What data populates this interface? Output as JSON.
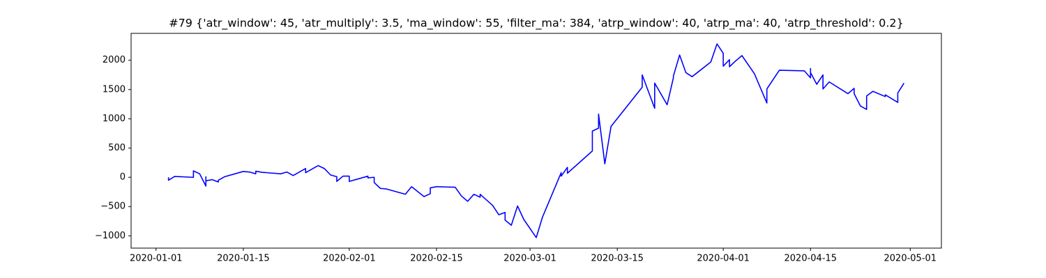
{
  "chart_data": {
    "type": "line",
    "title": "#79 {'atr_window': 45, 'atr_multiply': 3.5, 'ma_window': 55, 'filter_ma': 384, 'atrp_window': 40, 'atrp_ma': 40, 'atrp_threshold': 0.2}",
    "x": [
      "2020-01-03",
      "2020-01-03",
      "2020-01-04",
      "2020-01-07",
      "2020-01-07",
      "2020-01-08",
      "2020-01-09",
      "2020-01-09",
      "2020-01-09",
      "2020-01-10",
      "2020-01-11",
      "2020-01-11",
      "2020-01-12",
      "2020-01-15",
      "2020-01-16",
      "2020-01-17",
      "2020-01-17",
      "2020-01-18",
      "2020-01-21",
      "2020-01-22",
      "2020-01-23",
      "2020-01-25",
      "2020-01-25",
      "2020-01-27",
      "2020-01-28",
      "2020-01-29",
      "2020-01-30",
      "2020-01-30",
      "2020-01-31",
      "2020-02-01",
      "2020-02-01",
      "2020-02-04",
      "2020-02-04",
      "2020-02-05",
      "2020-02-05",
      "2020-02-06",
      "2020-02-07",
      "2020-02-10",
      "2020-02-11",
      "2020-02-13",
      "2020-02-14",
      "2020-02-14",
      "2020-02-15",
      "2020-02-18",
      "2020-02-19",
      "2020-02-20",
      "2020-02-21",
      "2020-02-22",
      "2020-02-22",
      "2020-02-24",
      "2020-02-25",
      "2020-02-26",
      "2020-02-26",
      "2020-02-27",
      "2020-02-28",
      "2020-02-29",
      "2020-03-02",
      "2020-03-03",
      "2020-03-06",
      "2020-03-06",
      "2020-03-07",
      "2020-03-07",
      "2020-03-11",
      "2020-03-11",
      "2020-03-12",
      "2020-03-12",
      "2020-03-13",
      "2020-03-14",
      "2020-03-19",
      "2020-03-19",
      "2020-03-21",
      "2020-03-21",
      "2020-03-23",
      "2020-03-24",
      "2020-03-24",
      "2020-03-25",
      "2020-03-26",
      "2020-03-27",
      "2020-03-30",
      "2020-03-31",
      "2020-04-01",
      "2020-04-01",
      "2020-04-02",
      "2020-04-02",
      "2020-04-03",
      "2020-04-04",
      "2020-04-06",
      "2020-04-08",
      "2020-04-08",
      "2020-04-10",
      "2020-04-14",
      "2020-04-15",
      "2020-04-15",
      "2020-04-15",
      "2020-04-16",
      "2020-04-17",
      "2020-04-17",
      "2020-04-18",
      "2020-04-21",
      "2020-04-22",
      "2020-04-22",
      "2020-04-23",
      "2020-04-24",
      "2020-04-24",
      "2020-04-25",
      "2020-04-27",
      "2020-04-27",
      "2020-04-29",
      "2020-04-29",
      "2020-04-30"
    ],
    "series": [
      {
        "color": "#0000ff",
        "values": [
          0,
          -50,
          15,
          0,
          110,
          60,
          -150,
          10,
          -60,
          -40,
          -80,
          -50,
          10,
          100,
          90,
          60,
          105,
          85,
          60,
          90,
          30,
          150,
          80,
          200,
          150,
          40,
          10,
          -70,
          20,
          20,
          -70,
          20,
          -10,
          0,
          -90,
          -190,
          -200,
          -290,
          -160,
          -330,
          -280,
          -180,
          -160,
          -170,
          -320,
          -410,
          -290,
          -340,
          -290,
          -480,
          -640,
          -600,
          -730,
          -820,
          -490,
          -720,
          -1030,
          -680,
          80,
          20,
          170,
          70,
          450,
          790,
          840,
          1080,
          230,
          870,
          1540,
          1750,
          1180,
          1610,
          1240,
          1700,
          1730,
          2090,
          1790,
          1720,
          1970,
          2280,
          2120,
          1900,
          2010,
          1890,
          1990,
          2080,
          1770,
          1270,
          1510,
          1830,
          1820,
          1700,
          1860,
          1790,
          1590,
          1750,
          1510,
          1630,
          1430,
          1520,
          1430,
          1220,
          1160,
          1390,
          1470,
          1380,
          1410,
          1280,
          1440,
          1610
        ]
      }
    ],
    "xlim": [
      "2019-12-28",
      "2020-05-06"
    ],
    "xticks": [
      "2020-01-01",
      "2020-01-15",
      "2020-02-01",
      "2020-02-15",
      "2020-03-01",
      "2020-03-15",
      "2020-04-01",
      "2020-04-15",
      "2020-05-01"
    ],
    "ylim": [
      -1210,
      2460
    ],
    "yticks": [
      {
        "value": -1000,
        "label": "−1000"
      },
      {
        "value": -500,
        "label": "−500"
      },
      0,
      500,
      1000,
      1500,
      2000
    ]
  }
}
